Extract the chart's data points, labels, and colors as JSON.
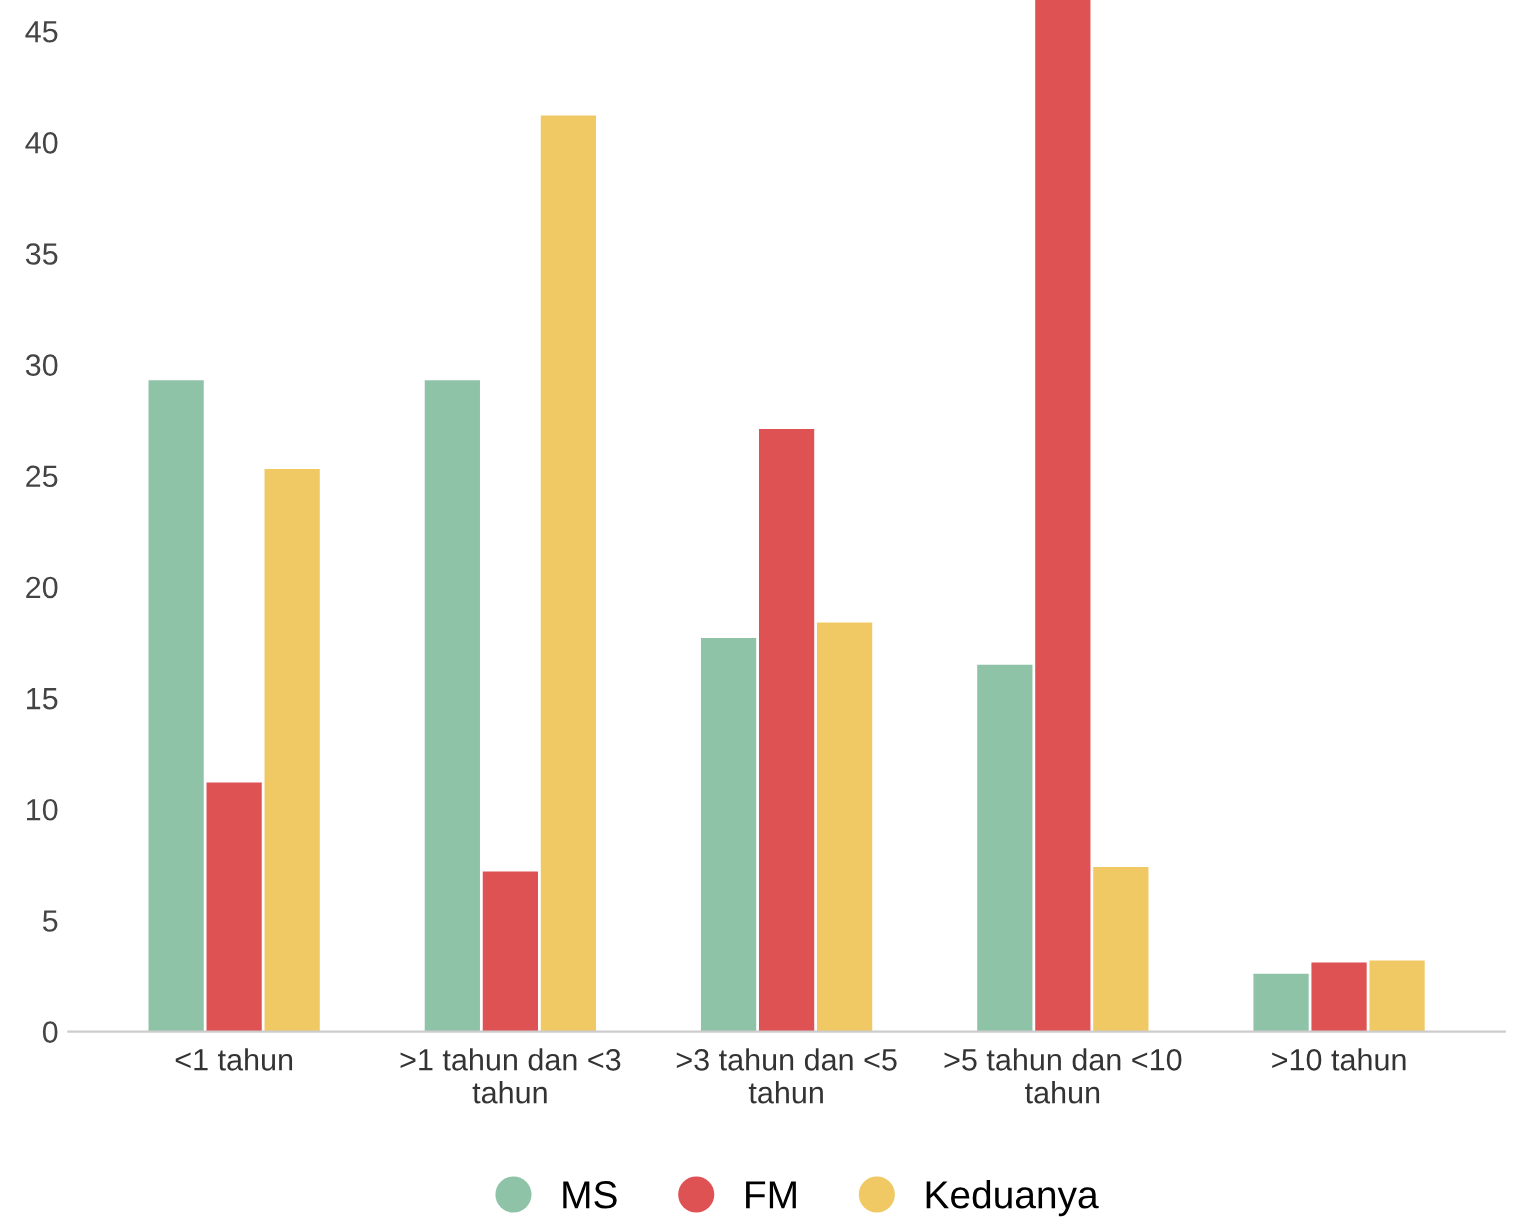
{
  "chart_data": {
    "type": "bar",
    "categories": [
      "<1 tahun",
      ">1 tahun dan <3 tahun",
      ">3 tahun dan <5 tahun",
      ">5 tahun dan <10 tahun",
      ">10 tahun"
    ],
    "series": [
      {
        "name": "MS",
        "color": "#8fc3a8",
        "values": [
          29.3,
          29.3,
          17.7,
          16.5,
          2.6
        ]
      },
      {
        "name": "FM",
        "color": "#de5254",
        "values": [
          11.2,
          7.2,
          27.1,
          46.4,
          3.1
        ]
      },
      {
        "name": "Keduanya",
        "color": "#f0c965",
        "values": [
          25.3,
          41.2,
          18.4,
          7.4,
          3.2
        ]
      }
    ],
    "ylim": [
      0,
      46.4
    ],
    "yticks": [
      0,
      5,
      10,
      15,
      20,
      25,
      30,
      35,
      40,
      45
    ],
    "grid": false,
    "legend": "bottom"
  }
}
